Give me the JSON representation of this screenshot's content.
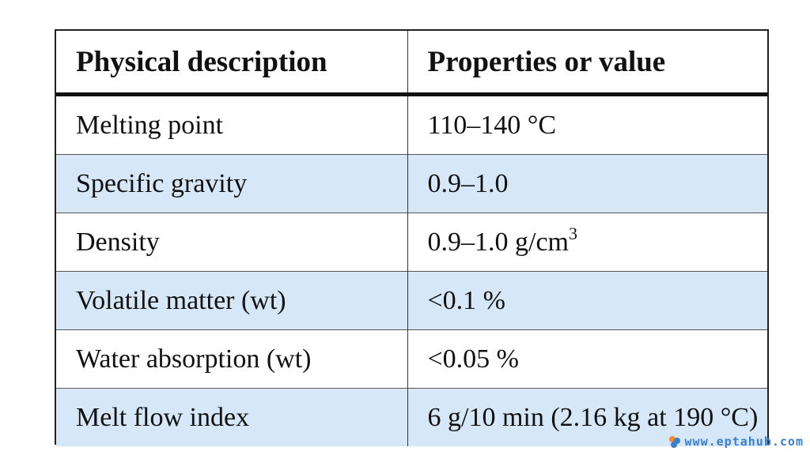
{
  "table": {
    "headers": [
      "Physical description",
      "Properties or value"
    ],
    "rows": [
      {
        "description": "Melting point",
        "value": "110–140 °C",
        "value_sup": ""
      },
      {
        "description": "Specific gravity",
        "value": "0.9–1.0",
        "value_sup": ""
      },
      {
        "description": "Density",
        "value": "0.9–1.0 g/cm",
        "value_sup": "3"
      },
      {
        "description": "Volatile matter (wt)",
        "value": "<0.1 %",
        "value_sup": ""
      },
      {
        "description": "Water absorption (wt)",
        "value": "<0.05 %",
        "value_sup": ""
      },
      {
        "description": "Melt flow index",
        "value": "6 g/10 min (2.16 kg at 190 °C)",
        "value_sup": ""
      }
    ]
  },
  "watermark": {
    "text": "www.eptahub.com",
    "logo_icon": "eptahub-logo-icon",
    "color": "#3a7fd0",
    "accent": "#f28c28"
  },
  "colors": {
    "shaded_row": "#d6e8f7",
    "plain_row": "#ffffff",
    "border": "#222222"
  }
}
